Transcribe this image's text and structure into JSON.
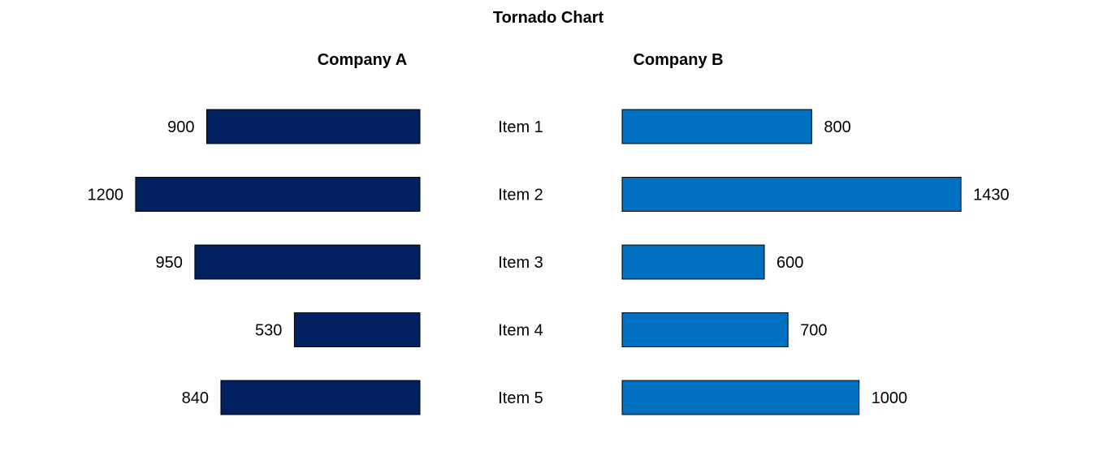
{
  "chart_data": {
    "type": "bar",
    "title": "Tornado Chart",
    "categories": [
      "Item 1",
      "Item 2",
      "Item 3",
      "Item 4",
      "Item 5"
    ],
    "series": [
      {
        "name": "Company A",
        "values": [
          900,
          1200,
          950,
          530,
          840
        ]
      },
      {
        "name": "Company B",
        "values": [
          800,
          1430,
          600,
          700,
          1000
        ]
      }
    ],
    "colors": {
      "Company A": "#002060",
      "Company B": "#0070C0"
    },
    "grid": false,
    "legend": "none"
  }
}
